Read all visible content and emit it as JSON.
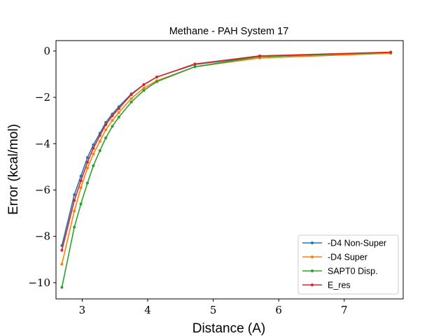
{
  "chart_data": {
    "type": "line",
    "title": "Methane - PAH System 17",
    "xlabel": "Distance (A)",
    "ylabel": "Error (kcal/mol)",
    "xlim": [
      2.6,
      7.9
    ],
    "ylim": [
      -10.7,
      0.45
    ],
    "xticks": [
      3,
      4,
      5,
      6,
      7
    ],
    "yticks": [
      0,
      -2,
      -4,
      -6,
      -8,
      -10
    ],
    "ytick_labels": [
      "0",
      "−2",
      "−4",
      "−6",
      "−8",
      "−10"
    ],
    "grid": false,
    "legend_position": "lower-right",
    "x": [
      2.69,
      2.88,
      2.98,
      3.08,
      3.17,
      3.27,
      3.36,
      3.46,
      3.56,
      3.75,
      3.94,
      4.14,
      4.72,
      5.71,
      7.71
    ],
    "series": [
      {
        "name": "-D4 Non-Super",
        "color": "#1f77b4",
        "values": [
          -8.4,
          -6.2,
          -5.4,
          -4.6,
          -4.05,
          -3.55,
          -3.08,
          -2.72,
          -2.4,
          -1.85,
          -1.45,
          -1.12,
          -0.58,
          -0.24,
          -0.06
        ]
      },
      {
        "name": "-D4 Super",
        "color": "#ff7f0e",
        "values": [
          -9.2,
          -6.9,
          -5.9,
          -5.05,
          -4.45,
          -3.9,
          -3.4,
          -3.0,
          -2.65,
          -2.05,
          -1.6,
          -1.28,
          -0.68,
          -0.3,
          -0.1
        ]
      },
      {
        "name": "SAPT0 Disp.",
        "color": "#2ca02c",
        "values": [
          -10.2,
          -7.6,
          -6.6,
          -5.7,
          -4.95,
          -4.3,
          -3.75,
          -3.25,
          -2.85,
          -2.2,
          -1.7,
          -1.32,
          -0.68,
          -0.24,
          -0.06
        ]
      },
      {
        "name": "E_res",
        "color": "#d62728",
        "values": [
          -8.6,
          -6.45,
          -5.6,
          -4.8,
          -4.2,
          -3.65,
          -3.18,
          -2.8,
          -2.48,
          -1.88,
          -1.45,
          -1.12,
          -0.56,
          -0.21,
          -0.05
        ]
      }
    ]
  }
}
